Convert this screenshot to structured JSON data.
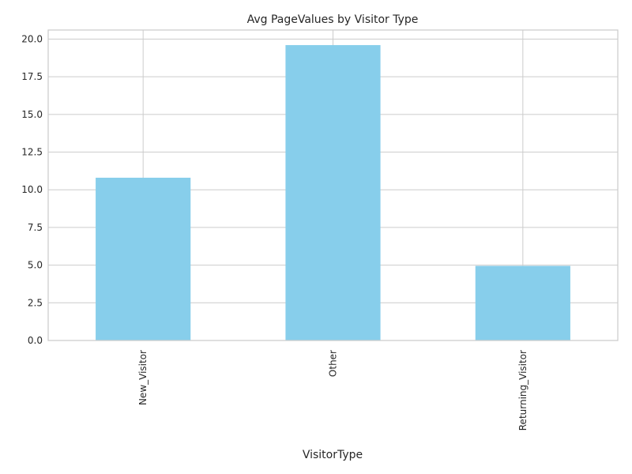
{
  "chart_data": {
    "type": "bar",
    "title": "Avg PageValues by Visitor Type",
    "xlabel": "VisitorType",
    "ylabel": "",
    "categories": [
      "New_Visitor",
      "Other",
      "Returning_Visitor"
    ],
    "values": [
      10.8,
      19.6,
      4.95
    ],
    "ylim": [
      0,
      20.6
    ],
    "yticks": [
      "0.0",
      "2.5",
      "5.0",
      "7.5",
      "10.0",
      "12.5",
      "15.0",
      "17.5",
      "20.0"
    ],
    "bar_color": "#87CEEB",
    "grid": true,
    "legend": "none"
  }
}
